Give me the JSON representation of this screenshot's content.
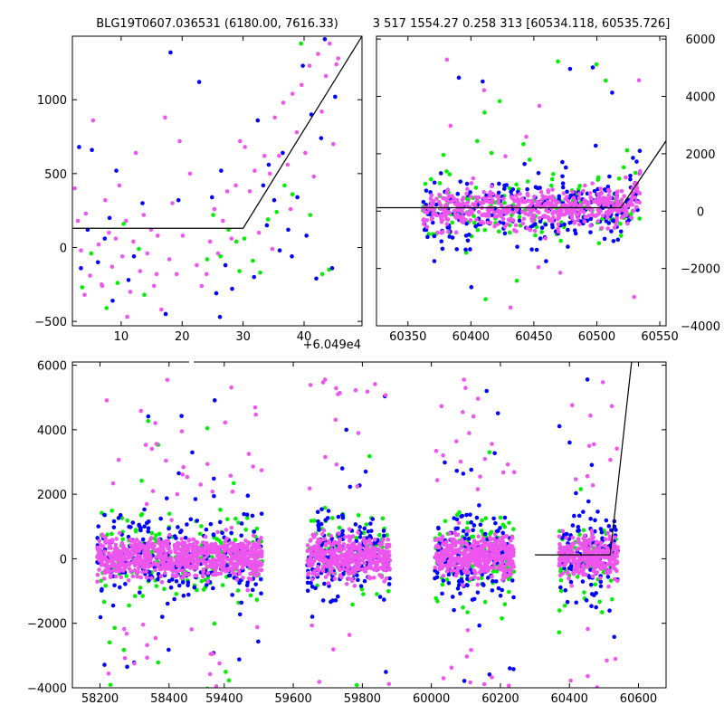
{
  "chart_data": [
    {
      "id": "top-left",
      "type": "scatter",
      "title": "BLG19T0607.036531 (6180.00, 7616.33)",
      "xlim": [
        2,
        49.5
      ],
      "ylim": [
        -530,
        1430
      ],
      "x_offset_label": "+6.049e4",
      "x_ticks": [
        10,
        20,
        30,
        40
      ],
      "x_tick_labels": [
        "10",
        "20",
        "30",
        "40"
      ],
      "y_ticks": [
        -500,
        0,
        500,
        1000
      ],
      "y_tick_labels": [
        "−500",
        "0",
        "500",
        "1000"
      ],
      "y_axis_side": "left",
      "model_line": {
        "x": [
          2,
          30,
          49.5
        ],
        "y": [
          130,
          130,
          1430
        ]
      },
      "series": [
        {
          "color": "#0000ff",
          "values": [
            [
              3.1,
              680
            ],
            [
              3.4,
              -140
            ],
            [
              4.5,
              120
            ],
            [
              5.2,
              660
            ],
            [
              6.2,
              -100
            ],
            [
              7.3,
              60
            ],
            [
              8.1,
              200
            ],
            [
              9.2,
              520
            ],
            [
              8.6,
              -360
            ],
            [
              11.2,
              -220
            ],
            [
              12.1,
              -60
            ],
            [
              13.5,
              300
            ],
            [
              17.3,
              -450
            ],
            [
              18.1,
              1320
            ],
            [
              19.4,
              320
            ],
            [
              22.8,
              1120
            ],
            [
              24.9,
              340
            ],
            [
              25.6,
              -310
            ],
            [
              26.4,
              520
            ],
            [
              27.1,
              -120
            ],
            [
              26.2,
              -470
            ],
            [
              28.2,
              -280
            ],
            [
              32.4,
              860
            ],
            [
              33.3,
              420
            ],
            [
              34.2,
              560
            ],
            [
              35.1,
              320
            ],
            [
              36.0,
              -20
            ],
            [
              36.5,
              640
            ],
            [
              37.4,
              120
            ],
            [
              38.0,
              -60
            ],
            [
              38.9,
              340
            ],
            [
              39.8,
              1230
            ],
            [
              40.4,
              80
            ],
            [
              41.2,
              900
            ],
            [
              42.0,
              -210
            ],
            [
              42.8,
              740
            ],
            [
              43.4,
              1410
            ],
            [
              44.6,
              -140
            ],
            [
              45.1,
              1020
            ],
            [
              33.9,
              150
            ],
            [
              31.8,
              -200
            ]
          ]
        },
        {
          "color": "#00ee00",
          "values": [
            [
              3.6,
              -270
            ],
            [
              5.1,
              -40
            ],
            [
              7.6,
              -410
            ],
            [
              9.4,
              -240
            ],
            [
              10.4,
              160
            ],
            [
              12.9,
              -10
            ],
            [
              13.8,
              -320
            ],
            [
              24.1,
              -80
            ],
            [
              25.1,
              220
            ],
            [
              26.3,
              -60
            ],
            [
              27.6,
              120
            ],
            [
              29.4,
              -160
            ],
            [
              30.2,
              60
            ],
            [
              31.6,
              -90
            ],
            [
              32.8,
              -170
            ],
            [
              34.1,
              190
            ],
            [
              35.5,
              240
            ],
            [
              38.1,
              360
            ],
            [
              39.5,
              1380
            ],
            [
              41.0,
              220
            ],
            [
              43.0,
              -180
            ],
            [
              44.1,
              -150
            ],
            [
              28.9,
              40
            ],
            [
              36.8,
              420
            ]
          ]
        },
        {
          "color": "#ee55ee",
          "values": [
            [
              2.4,
              400
            ],
            [
              2.9,
              180
            ],
            [
              3.4,
              -20
            ],
            [
              4.2,
              230
            ],
            [
              4.9,
              -190
            ],
            [
              5.4,
              860
            ],
            [
              6.3,
              20
            ],
            [
              6.9,
              -260
            ],
            [
              7.4,
              320
            ],
            [
              8.0,
              100
            ],
            [
              8.5,
              -130
            ],
            [
              9.1,
              60
            ],
            [
              9.7,
              420
            ],
            [
              10.2,
              -60
            ],
            [
              10.8,
              180
            ],
            [
              11.5,
              -300
            ],
            [
              12.0,
              40
            ],
            [
              12.4,
              640
            ],
            [
              13.1,
              -160
            ],
            [
              13.7,
              220
            ],
            [
              14.3,
              -40
            ],
            [
              14.9,
              120
            ],
            [
              15.4,
              -260
            ],
            [
              16.0,
              80
            ],
            [
              16.6,
              -420
            ],
            [
              17.2,
              880
            ],
            [
              17.9,
              -80
            ],
            [
              18.4,
              300
            ],
            [
              19.1,
              -180
            ],
            [
              19.6,
              720
            ],
            [
              20.1,
              80
            ],
            [
              21.3,
              500
            ],
            [
              23.2,
              -260
            ],
            [
              24.0,
              -180
            ],
            [
              24.6,
              40
            ],
            [
              25.3,
              260
            ],
            [
              25.9,
              -40
            ],
            [
              26.7,
              180
            ],
            [
              27.4,
              380
            ],
            [
              28.1,
              60
            ],
            [
              28.8,
              420
            ],
            [
              29.5,
              720
            ],
            [
              30.3,
              680
            ],
            [
              31.1,
              380
            ],
            [
              31.9,
              520
            ],
            [
              32.6,
              100
            ],
            [
              33.5,
              620
            ],
            [
              34.4,
              500
            ],
            [
              35.2,
              880
            ],
            [
              35.9,
              620
            ],
            [
              36.6,
              980
            ],
            [
              37.3,
              560
            ],
            [
              38.1,
              1040
            ],
            [
              38.8,
              780
            ],
            [
              39.6,
              1100
            ],
            [
              40.2,
              640
            ],
            [
              40.9,
              1230
            ],
            [
              41.6,
              480
            ],
            [
              42.3,
              1310
            ],
            [
              42.9,
              920
            ],
            [
              43.6,
              1160
            ],
            [
              44.2,
              1380
            ],
            [
              44.8,
              700
            ],
            [
              45.3,
              1240
            ],
            [
              45.6,
              1280
            ],
            [
              4.0,
              -320
            ],
            [
              6.8,
              -250
            ],
            [
              11.0,
              -470
            ],
            [
              15.8,
              -180
            ],
            [
              22.4,
              -120
            ],
            [
              34.8,
              -10
            ],
            [
              37.8,
              260
            ]
          ]
        }
      ]
    },
    {
      "id": "top-right",
      "type": "scatter",
      "title": "3 517 1554.27 0.258 313 [60534.118, 60535.726]",
      "xlim": [
        60325,
        60555
      ],
      "ylim": [
        -4000,
        6100
      ],
      "x_ticks": [
        60350,
        60400,
        60450,
        60500,
        60550
      ],
      "x_tick_labels": [
        "60350",
        "60400",
        "60450",
        "60500",
        "60550"
      ],
      "y_ticks": [
        -4000,
        -2000,
        0,
        2000,
        4000,
        6000
      ],
      "y_tick_labels": [
        "−4000",
        "−2000",
        "0",
        "2000",
        "4000",
        "6000"
      ],
      "y_axis_side": "right",
      "model_line": {
        "x": [
          60325,
          60519,
          60555
        ],
        "y": [
          120,
          120,
          2450
        ]
      },
      "density": {
        "range_x": [
          60362,
          60535
        ],
        "sigma": 420,
        "counts": {
          "#0000ff": 260,
          "#00ee00": 140,
          "#ee55ee": 520
        },
        "outliers": 38
      }
    },
    {
      "id": "bottom",
      "type": "scatter",
      "title": "",
      "xlim": [
        58120,
        60680
      ],
      "ylim": [
        -4000,
        6100
      ],
      "x_ticks": [
        58200,
        58400,
        59400,
        59600,
        59800,
        60000,
        60200,
        60400,
        60600
      ],
      "x_tick_labels": [
        "58200",
        "58400",
        "59400",
        "59600",
        "59800",
        "60000",
        "60200",
        "60400",
        "60600"
      ],
      "y_ticks": [
        -4000,
        -2000,
        0,
        2000,
        4000,
        6000
      ],
      "y_tick_labels": [
        "−4000",
        "−2000",
        "0",
        "2000",
        "4000",
        "6000"
      ],
      "y_axis_side": "left",
      "axis_break": {
        "from": 58420,
        "to": 59260
      },
      "model_line": {
        "x": [
          60300,
          60518,
          60580
        ],
        "y": [
          120,
          120,
          6100
        ]
      },
      "seasons": [
        {
          "range": [
            58190,
            58420
          ],
          "counts": {
            "#0000ff": 130,
            "#00ee00": 90,
            "#ee55ee": 420
          }
        },
        {
          "range": [
            59260,
            59510
          ],
          "counts": {
            "#0000ff": 150,
            "#00ee00": 110,
            "#ee55ee": 460
          }
        },
        {
          "range": [
            59640,
            59880
          ],
          "counts": {
            "#0000ff": 190,
            "#00ee00": 80,
            "#ee55ee": 440
          }
        },
        {
          "range": [
            60010,
            60240
          ],
          "counts": {
            "#0000ff": 170,
            "#00ee00": 120,
            "#ee55ee": 470
          }
        },
        {
          "range": [
            60370,
            60540
          ],
          "counts": {
            "#0000ff": 120,
            "#00ee00": 80,
            "#ee55ee": 300
          }
        }
      ],
      "sigma": 420
    }
  ]
}
